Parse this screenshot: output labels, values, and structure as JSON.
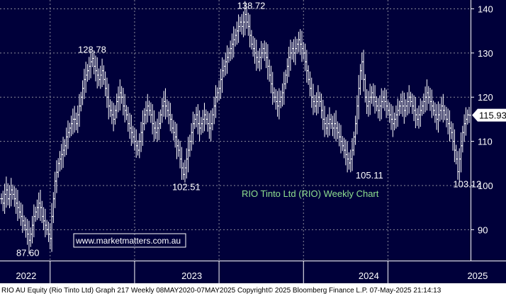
{
  "chart_data": {
    "type": "line",
    "title": "RIO Tinto Ltd (RIO) Weekly Chart",
    "xlabel": "",
    "ylabel": "",
    "ylim": [
      83,
      142
    ],
    "x_ticks": [
      "2022",
      "2023",
      "2024",
      "2025"
    ],
    "y_ticks": [
      90,
      100,
      110,
      120,
      130,
      140
    ],
    "grid": true,
    "last_price": "115.93",
    "annotations": [
      {
        "label": "87.60",
        "value": 87.6,
        "week": 17
      },
      {
        "label": "128.78",
        "value": 128.78,
        "week": 55
      },
      {
        "label": "102.51",
        "value": 102.51,
        "week": 113
      },
      {
        "label": "138.72",
        "value": 138.72,
        "week": 153
      },
      {
        "label": "105.11",
        "value": 105.11,
        "week": 226
      },
      {
        "label": "103.12",
        "value": 103.12,
        "week": 286
      }
    ],
    "series": [
      {
        "values": [
          97,
          96,
          98,
          99,
          97,
          98,
          99,
          98,
          97,
          96,
          95,
          94,
          93,
          92,
          91,
          90,
          89,
          87.6,
          89,
          91,
          93,
          94,
          95,
          96,
          95,
          93,
          92,
          91,
          90,
          89,
          88,
          93,
          97,
          101,
          103,
          105,
          106,
          107,
          108,
          109,
          111,
          112,
          113,
          114,
          115,
          115,
          114,
          116,
          118,
          120,
          122,
          124,
          125,
          126,
          127,
          128,
          128.78,
          127,
          126,
          125,
          124,
          125,
          126,
          124,
          122,
          120,
          118,
          117,
          116,
          115,
          117,
          119,
          120,
          121,
          120,
          118,
          117,
          116,
          114,
          113,
          112,
          111,
          110,
          109,
          108,
          110,
          112,
          114,
          116,
          117,
          118,
          117,
          116,
          114,
          113,
          112,
          113,
          114,
          116,
          118,
          119,
          118,
          117,
          116,
          115,
          113,
          112,
          111,
          109,
          108,
          106,
          104,
          102.51,
          104,
          106,
          108,
          110,
          112,
          114,
          115,
          116,
          114,
          113,
          114,
          115,
          116,
          115,
          114,
          113,
          114,
          116,
          118,
          120,
          121,
          122,
          124,
          126,
          127,
          128,
          129,
          130,
          131,
          132,
          133,
          134,
          135,
          136,
          137,
          136,
          137,
          138.72,
          137,
          136,
          134,
          132,
          131,
          130,
          129,
          128,
          129,
          130,
          131,
          130,
          129,
          127,
          125,
          123,
          121,
          120,
          119,
          118,
          119,
          120,
          121,
          123,
          125,
          127,
          129,
          130,
          131,
          130,
          131,
          132,
          133,
          132,
          131,
          130,
          128,
          126,
          124,
          122,
          120,
          119,
          118,
          119,
          120,
          119,
          117,
          115,
          114,
          113,
          114,
          115,
          114,
          113,
          114,
          113,
          112,
          111,
          110,
          109,
          108,
          107,
          106,
          105.11,
          106,
          108,
          111,
          114,
          118,
          122,
          126,
          128,
          124,
          120,
          118,
          119,
          120,
          121,
          120,
          119,
          118,
          117,
          118,
          119,
          120,
          119,
          118,
          117,
          116,
          115,
          114,
          115,
          116,
          117,
          118,
          119,
          118,
          117,
          118,
          119,
          120,
          119,
          118,
          117,
          116,
          115,
          116,
          117,
          118,
          119,
          120,
          121,
          120,
          119,
          118,
          117,
          116,
          115,
          116,
          117,
          118,
          117,
          116,
          115,
          114,
          113,
          112,
          110,
          108,
          106,
          103.12,
          106,
          109,
          112,
          114,
          115,
          116,
          115.93
        ]
      }
    ]
  },
  "watermark": "www.marketmatters.com.au",
  "footer": "RIO AU Equity (Rio Tinto Ltd) Graph 217  Weekly 08MAY2020-07MAY2025  Copyright© 2025 Bloomberg Finance L.P.  07-May-2025 21:14:13",
  "colors": {
    "background": "#00003a",
    "bars": "#ffffff",
    "grid": "#8a8a9a",
    "title": "#8fe08f",
    "watermark_border": "#ffffff",
    "last_price_bg": "#ffffff",
    "footer_bg": "#ffffff"
  }
}
